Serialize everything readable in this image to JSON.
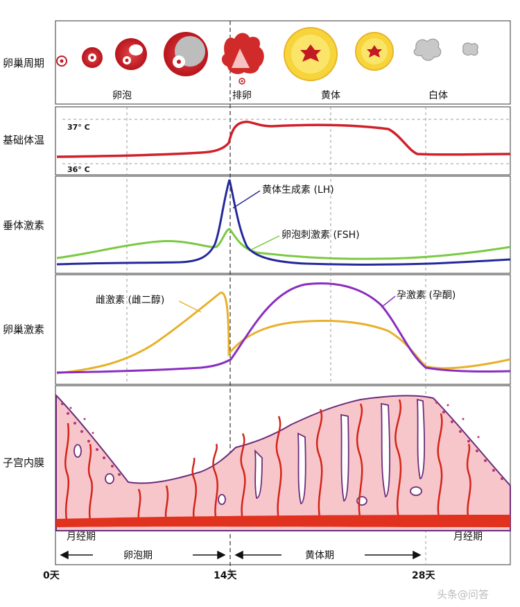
{
  "rows": {
    "ovarian_cycle": "卵巢周期",
    "basal_temp": "基础体温",
    "pituitary": "垂体激素",
    "ovarian_hormone": "卵巢激素",
    "endometrium": "子宫内膜"
  },
  "ovarian_labels": {
    "follicle": "卵泡",
    "ovulation": "排卵",
    "corpus_luteum": "黄体",
    "corpus_albicans": "白体"
  },
  "temperature": {
    "high": "37° C",
    "low": "36° C"
  },
  "pituitary_labels": {
    "lh": "黄体生成素 (LH)",
    "fsh": "卵泡刺激素 (FSH)"
  },
  "ovarian_hormone_labels": {
    "estrogen": "雌激素 (雌二醇)",
    "progesterone": "孕激素 (孕酮)"
  },
  "menses": {
    "left": "月经期",
    "right": "月经期"
  },
  "phases": {
    "follicular": "卵泡期",
    "luteal": "黄体期"
  },
  "axis_days": {
    "d0": "0天",
    "d14": "14天",
    "d28": "28天"
  },
  "watermark": "头条@问答",
  "colors": {
    "temperature": "#d0202a",
    "lh": "#23289a",
    "fsh": "#7ac943",
    "estrogen": "#e8b02a",
    "progesterone": "#8a2dc0",
    "endometrium_fill": "#f7c6ca",
    "vessel": "#d42318"
  }
}
